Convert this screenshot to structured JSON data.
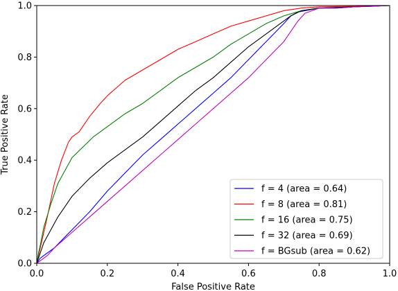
{
  "chart_data": {
    "type": "line",
    "xlabel": "False Positive Rate",
    "ylabel": "True Positive Rate",
    "xlim": [
      0,
      1
    ],
    "ylim": [
      0,
      1
    ],
    "x_ticks": [
      0.0,
      0.2,
      0.4,
      0.6,
      0.8,
      1.0
    ],
    "y_ticks": [
      0.0,
      0.2,
      0.4,
      0.6,
      0.8,
      1.0
    ],
    "x_tick_labels": [
      "0.0",
      "0.2",
      "0.4",
      "0.6",
      "0.8",
      "1.0"
    ],
    "y_tick_labels": [
      "0.0",
      "0.2",
      "0.4",
      "0.6",
      "0.8",
      "1.0"
    ],
    "grid": false,
    "legend_position": "lower-right",
    "series": [
      {
        "name": "f = 4 (area = 0.64)",
        "color": "#0000ff",
        "x": [
          0,
          0.01,
          0.03,
          0.05,
          0.1,
          0.15,
          0.2,
          0.25,
          0.3,
          0.35,
          0.4,
          0.45,
          0.5,
          0.55,
          0.6,
          0.65,
          0.7,
          0.72,
          0.74,
          0.76,
          0.8,
          0.85,
          0.9,
          0.95,
          1.0
        ],
        "y": [
          0,
          0.02,
          0.04,
          0.06,
          0.13,
          0.2,
          0.28,
          0.35,
          0.42,
          0.48,
          0.54,
          0.6,
          0.66,
          0.72,
          0.79,
          0.86,
          0.93,
          0.96,
          0.975,
          0.98,
          0.99,
          0.99,
          0.995,
          0.997,
          1.0
        ]
      },
      {
        "name": "f = 8 (area = 0.81)",
        "color": "#ff0000",
        "x": [
          0,
          0.005,
          0.01,
          0.02,
          0.03,
          0.05,
          0.07,
          0.09,
          0.1,
          0.12,
          0.15,
          0.18,
          0.2,
          0.25,
          0.3,
          0.35,
          0.4,
          0.45,
          0.5,
          0.55,
          0.6,
          0.65,
          0.7,
          0.75,
          0.8,
          0.9,
          1.0
        ],
        "y": [
          0,
          0.03,
          0.06,
          0.12,
          0.18,
          0.31,
          0.4,
          0.47,
          0.49,
          0.51,
          0.57,
          0.62,
          0.65,
          0.71,
          0.75,
          0.79,
          0.83,
          0.86,
          0.89,
          0.92,
          0.94,
          0.96,
          0.98,
          0.99,
          0.995,
          0.997,
          1.0
        ]
      },
      {
        "name": "f = 16 (area = 0.75)",
        "color": "#008000",
        "x": [
          0,
          0.005,
          0.01,
          0.02,
          0.04,
          0.06,
          0.08,
          0.1,
          0.13,
          0.16,
          0.2,
          0.25,
          0.3,
          0.35,
          0.4,
          0.45,
          0.5,
          0.55,
          0.6,
          0.65,
          0.7,
          0.75,
          0.8,
          0.9,
          1.0
        ],
        "y": [
          0,
          0.04,
          0.07,
          0.14,
          0.23,
          0.31,
          0.36,
          0.41,
          0.45,
          0.49,
          0.53,
          0.58,
          0.62,
          0.67,
          0.72,
          0.76,
          0.8,
          0.85,
          0.89,
          0.93,
          0.96,
          0.98,
          0.99,
          0.995,
          1.0
        ]
      },
      {
        "name": "f = 32 (area = 0.69)",
        "color": "#000000",
        "x": [
          0,
          0.005,
          0.01,
          0.02,
          0.04,
          0.06,
          0.1,
          0.15,
          0.2,
          0.25,
          0.3,
          0.35,
          0.4,
          0.45,
          0.5,
          0.55,
          0.6,
          0.65,
          0.7,
          0.72,
          0.75,
          0.8,
          0.9,
          1.0
        ],
        "y": [
          0,
          0.02,
          0.04,
          0.08,
          0.13,
          0.18,
          0.26,
          0.33,
          0.39,
          0.44,
          0.49,
          0.55,
          0.61,
          0.67,
          0.72,
          0.78,
          0.84,
          0.89,
          0.94,
          0.96,
          0.98,
          0.99,
          0.995,
          1.0
        ]
      },
      {
        "name": "f = BGsub (area = 0.62)",
        "color": "#bf00bf",
        "x": [
          0,
          0.01,
          0.03,
          0.05,
          0.1,
          0.15,
          0.2,
          0.25,
          0.3,
          0.35,
          0.4,
          0.45,
          0.5,
          0.55,
          0.6,
          0.65,
          0.7,
          0.72,
          0.74,
          0.76,
          0.8,
          0.85,
          0.9,
          0.95,
          1.0
        ],
        "y": [
          0,
          0.01,
          0.03,
          0.06,
          0.12,
          0.18,
          0.24,
          0.3,
          0.36,
          0.42,
          0.48,
          0.54,
          0.6,
          0.66,
          0.72,
          0.79,
          0.86,
          0.9,
          0.94,
          0.97,
          0.99,
          0.99,
          0.995,
          0.997,
          1.0
        ]
      }
    ]
  }
}
